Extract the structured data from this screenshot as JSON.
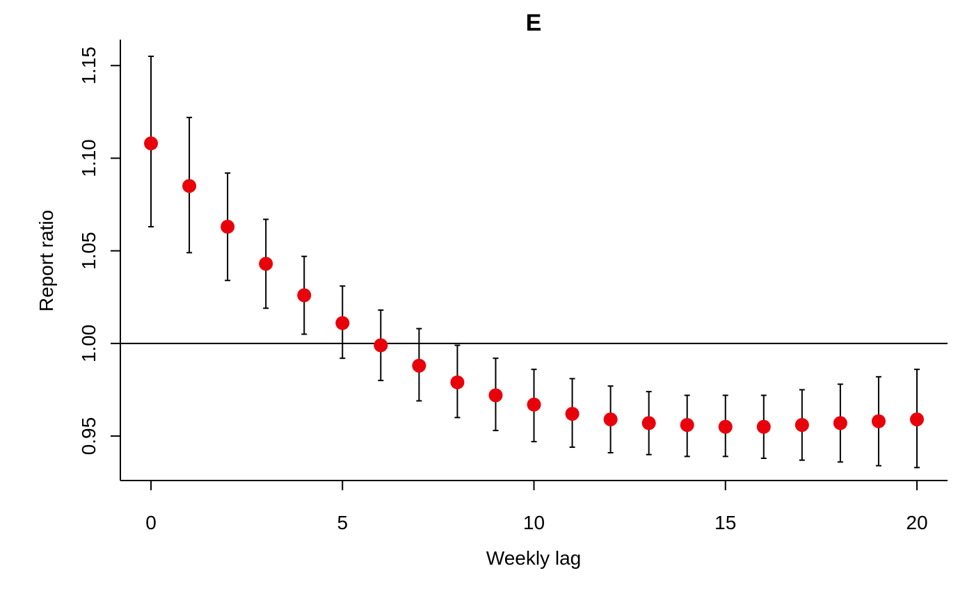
{
  "chart_data": {
    "type": "scatter",
    "title": "E",
    "xlabel": "Weekly lag",
    "ylabel": "Report ratio",
    "xlim": [
      -0.8,
      20.8
    ],
    "ylim": [
      0.926,
      1.164
    ],
    "x_ticks": [
      0,
      5,
      10,
      15,
      20
    ],
    "x_tick_labels": [
      "0",
      "5",
      "10",
      "15",
      "20"
    ],
    "y_ticks": [
      0.95,
      1.0,
      1.05,
      1.1,
      1.15
    ],
    "y_tick_labels": [
      "0.95",
      "1.00",
      "1.05",
      "1.10",
      "1.15"
    ],
    "reference_line": 1.0,
    "point_color": "#e8000b",
    "series": [
      {
        "x": [
          0,
          1,
          2,
          3,
          4,
          5,
          6,
          7,
          8,
          9,
          10,
          11,
          12,
          13,
          14,
          15,
          16,
          17,
          18,
          19,
          20
        ],
        "values": [
          1.108,
          1.085,
          1.063,
          1.043,
          1.026,
          1.011,
          0.999,
          0.988,
          0.979,
          0.972,
          0.967,
          0.962,
          0.959,
          0.957,
          0.956,
          0.955,
          0.955,
          0.956,
          0.957,
          0.958,
          0.959
        ],
        "lower": [
          1.063,
          1.049,
          1.034,
          1.019,
          1.005,
          0.992,
          0.98,
          0.969,
          0.96,
          0.953,
          0.947,
          0.944,
          0.941,
          0.94,
          0.939,
          0.939,
          0.938,
          0.937,
          0.936,
          0.934,
          0.933
        ],
        "upper": [
          1.155,
          1.122,
          1.092,
          1.067,
          1.047,
          1.031,
          1.018,
          1.008,
          0.999,
          0.992,
          0.986,
          0.981,
          0.977,
          0.974,
          0.972,
          0.972,
          0.972,
          0.975,
          0.978,
          0.982,
          0.986
        ]
      }
    ],
    "grid": false
  }
}
